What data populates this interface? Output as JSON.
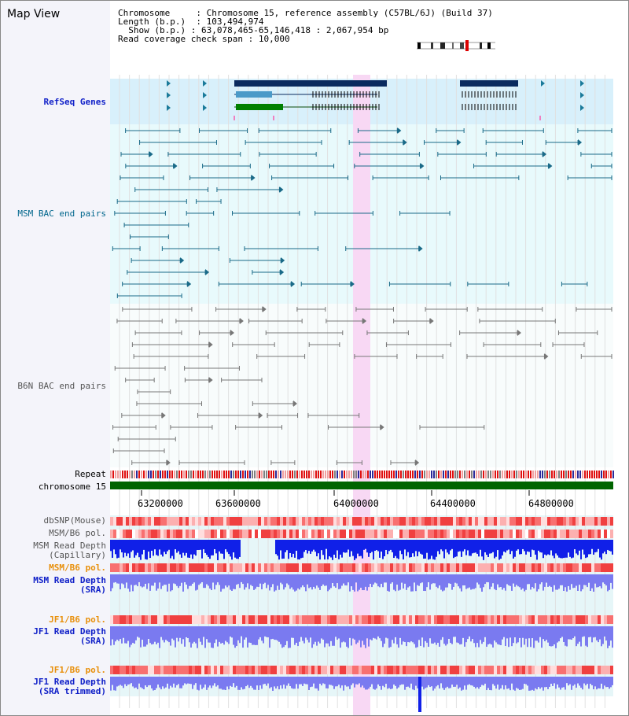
{
  "title": "Map View",
  "info": {
    "chromosome_label": "Chromosome",
    "chromosome_value": "Chromosome 15, reference assembly (C57BL/6J) (Build 37)",
    "length_label": "Length (b.p.)",
    "length_value": "103,494,974",
    "show_label": "Show (b.p.)",
    "show_value": "63,078,465-65,146,418 : 2,067,954 bp",
    "coverage_label": "Read coverage check span",
    "coverage_value": "10,000"
  },
  "tracks": {
    "refseq": "RefSeq Genes",
    "msm_bac": "MSM BAC end pairs",
    "b6n_bac": "B6N BAC end pairs",
    "repeat": "Repeat",
    "chromosome": "chromosome 15",
    "dbsnp": "dbSNP(Mouse)",
    "msm_b6_pol_1": "MSM/B6 pol.",
    "msm_depth_cap": "MSM Read Depth\n(Capillary)",
    "msm_b6_pol_2": "MSM/B6 pol.",
    "msm_depth_sra": "MSM Read Depth\n(SRA)",
    "jf1_b6_pol_1": "JF1/B6 pol.",
    "jf1_depth_sra": "JF1 Read Depth\n(SRA)",
    "jf1_b6_pol_2": "JF1/B6 pol.",
    "jf1_depth_trim": "JF1 Read Depth\n(SRA trimmed)"
  },
  "axis_ticks": [
    "63200000",
    "63600000",
    "64000000",
    "64400000",
    "64800000"
  ],
  "colors": {
    "refseq_bg": "#d8f0fb",
    "bac_bg": "#e8fafc",
    "highlight": "#f8d8f4",
    "chrom_bar": "#006400",
    "depth_blue": "#1020e8",
    "depth_light": "#7a7af0"
  }
}
